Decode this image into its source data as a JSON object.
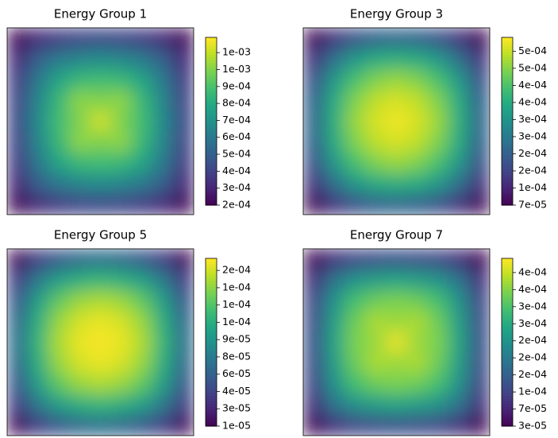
{
  "chart_data": [
    {
      "type": "heatmap",
      "title": "Energy Group 1",
      "cmap": "viridis",
      "clim": [
        0.0002,
        0.00119
      ],
      "cticks": [
        {
          "value": 0.0002,
          "label": "2e-04"
        },
        {
          "value": 0.0003,
          "label": "3e-04"
        },
        {
          "value": 0.0004,
          "label": "4e-04"
        },
        {
          "value": 0.0005,
          "label": "5e-04"
        },
        {
          "value": 0.0006,
          "label": "6e-04"
        },
        {
          "value": 0.0007,
          "label": "7e-04"
        },
        {
          "value": 0.0008,
          "label": "8e-04"
        },
        {
          "value": 0.0009,
          "label": "9e-04"
        },
        {
          "value": 0.001,
          "label": "1e-03"
        },
        {
          "value": 0.0011,
          "label": "1e-03"
        }
      ],
      "z": [
        [
          0.00022,
          0.00032,
          0.00038,
          0.00041,
          0.00042,
          0.00041,
          0.00038,
          0.00032,
          0.00022
        ],
        [
          0.00032,
          0.0005,
          0.0006,
          0.00065,
          0.00067,
          0.00065,
          0.0006,
          0.0005,
          0.00032
        ],
        [
          0.00038,
          0.0006,
          0.00078,
          0.00086,
          0.00088,
          0.00086,
          0.00078,
          0.0006,
          0.00038
        ],
        [
          0.00041,
          0.00065,
          0.00086,
          0.00102,
          0.001,
          0.00102,
          0.00086,
          0.00065,
          0.00041
        ],
        [
          0.00042,
          0.00067,
          0.00088,
          0.001,
          0.00112,
          0.001,
          0.00088,
          0.00067,
          0.00042
        ],
        [
          0.00041,
          0.00065,
          0.00086,
          0.00102,
          0.001,
          0.00102,
          0.00086,
          0.00065,
          0.00041
        ],
        [
          0.00038,
          0.0006,
          0.00078,
          0.00086,
          0.00088,
          0.00086,
          0.00078,
          0.0006,
          0.00038
        ],
        [
          0.00032,
          0.0005,
          0.0006,
          0.00065,
          0.00067,
          0.00065,
          0.0006,
          0.0005,
          0.00032
        ],
        [
          0.00022,
          0.00032,
          0.00038,
          0.00041,
          0.00042,
          0.00041,
          0.00038,
          0.00032,
          0.00022
        ]
      ]
    },
    {
      "type": "heatmap",
      "title": "Energy Group 3",
      "cmap": "viridis",
      "clim": [
        7e-05,
        0.00058
      ],
      "cticks": [
        {
          "value": 7e-05,
          "label": "7e-05"
        },
        {
          "value": 0.000122,
          "label": "1e-04"
        },
        {
          "value": 0.000174,
          "label": "2e-04"
        },
        {
          "value": 0.000226,
          "label": "2e-04"
        },
        {
          "value": 0.000278,
          "label": "3e-04"
        },
        {
          "value": 0.00033,
          "label": "3e-04"
        },
        {
          "value": 0.000382,
          "label": "4e-04"
        },
        {
          "value": 0.000434,
          "label": "4e-04"
        },
        {
          "value": 0.000486,
          "label": "5e-04"
        },
        {
          "value": 0.000538,
          "label": "5e-04"
        }
      ],
      "z": [
        [
          8e-05,
          0.00015,
          0.0002,
          0.00023,
          0.00024,
          0.00023,
          0.0002,
          0.00015,
          8e-05
        ],
        [
          0.00015,
          0.00026,
          0.00034,
          0.00038,
          0.00039,
          0.00038,
          0.00034,
          0.00026,
          0.00015
        ],
        [
          0.0002,
          0.00034,
          0.00043,
          0.00048,
          0.0005,
          0.00048,
          0.00043,
          0.00034,
          0.0002
        ],
        [
          0.00023,
          0.00038,
          0.00048,
          0.00053,
          0.00055,
          0.00053,
          0.00048,
          0.00038,
          0.00023
        ],
        [
          0.00024,
          0.00039,
          0.0005,
          0.00055,
          0.00057,
          0.00055,
          0.0005,
          0.00039,
          0.00024
        ],
        [
          0.00023,
          0.00038,
          0.00048,
          0.00053,
          0.00055,
          0.00053,
          0.00048,
          0.00038,
          0.00023
        ],
        [
          0.0002,
          0.00034,
          0.00043,
          0.00048,
          0.0005,
          0.00048,
          0.00043,
          0.00034,
          0.0002
        ],
        [
          0.00015,
          0.00026,
          0.00034,
          0.00038,
          0.00039,
          0.00038,
          0.00034,
          0.00026,
          0.00015
        ],
        [
          8e-05,
          0.00015,
          0.0002,
          0.00023,
          0.00024,
          0.00023,
          0.0002,
          0.00015,
          8e-05
        ]
      ]
    },
    {
      "type": "heatmap",
      "title": "Energy Group 5",
      "cmap": "viridis",
      "clim": [
        1e-05,
        0.00017
      ],
      "cticks": [
        {
          "value": 1e-05,
          "label": "1e-05"
        },
        {
          "value": 2.65e-05,
          "label": "3e-05"
        },
        {
          "value": 4.3e-05,
          "label": "4e-05"
        },
        {
          "value": 5.95e-05,
          "label": "6e-05"
        },
        {
          "value": 7.6e-05,
          "label": "8e-05"
        },
        {
          "value": 9.25e-05,
          "label": "9e-05"
        },
        {
          "value": 0.000109,
          "label": "1e-04"
        },
        {
          "value": 0.0001255,
          "label": "1e-04"
        },
        {
          "value": 0.000142,
          "label": "1e-04"
        },
        {
          "value": 0.0001585,
          "label": "2e-04"
        }
      ],
      "z": [
        [
          1.5e-05,
          4e-05,
          5.5e-05,
          6.5e-05,
          7e-05,
          6.5e-05,
          5.5e-05,
          4e-05,
          1.5e-05
        ],
        [
          4e-05,
          7.5e-05,
          0.0001,
          0.00011,
          0.000115,
          0.00011,
          0.0001,
          7.5e-05,
          4e-05
        ],
        [
          5.5e-05,
          0.0001,
          0.00013,
          0.000145,
          0.00015,
          0.000145,
          0.00013,
          0.0001,
          5.5e-05
        ],
        [
          6.5e-05,
          0.00011,
          0.000145,
          0.00016,
          0.000165,
          0.00016,
          0.000145,
          0.00011,
          6.5e-05
        ],
        [
          7e-05,
          0.000115,
          0.00015,
          0.000165,
          0.000168,
          0.000165,
          0.00015,
          0.000115,
          7e-05
        ],
        [
          6.5e-05,
          0.00011,
          0.000145,
          0.00016,
          0.000165,
          0.00016,
          0.000145,
          0.00011,
          6.5e-05
        ],
        [
          5.5e-05,
          0.0001,
          0.00013,
          0.000145,
          0.00015,
          0.000145,
          0.00013,
          0.0001,
          5.5e-05
        ],
        [
          4e-05,
          7.5e-05,
          0.0001,
          0.00011,
          0.000115,
          0.00011,
          0.0001,
          7.5e-05,
          4e-05
        ],
        [
          1.5e-05,
          4e-05,
          5.5e-05,
          6.5e-05,
          7e-05,
          6.5e-05,
          5.5e-05,
          4e-05,
          1.5e-05
        ]
      ]
    },
    {
      "type": "heatmap",
      "title": "Energy Group 7",
      "cmap": "viridis",
      "clim": [
        3e-05,
        0.000443
      ],
      "cticks": [
        {
          "value": 3e-05,
          "label": "3e-05"
        },
        {
          "value": 7.2e-05,
          "label": "7e-05"
        },
        {
          "value": 0.000114,
          "label": "1e-04"
        },
        {
          "value": 0.000156,
          "label": "2e-04"
        },
        {
          "value": 0.000198,
          "label": "2e-04"
        },
        {
          "value": 0.00024,
          "label": "2e-04"
        },
        {
          "value": 0.000282,
          "label": "3e-04"
        },
        {
          "value": 0.000324,
          "label": "3e-04"
        },
        {
          "value": 0.000366,
          "label": "4e-04"
        },
        {
          "value": 0.000408,
          "label": "4e-04"
        }
      ],
      "z": [
        [
          4e-05,
          9e-05,
          0.00012,
          0.00013,
          0.000135,
          0.00013,
          0.00012,
          9e-05,
          4e-05
        ],
        [
          9e-05,
          0.00019,
          0.00024,
          0.00026,
          0.00027,
          0.00026,
          0.00024,
          0.00019,
          9e-05
        ],
        [
          0.00012,
          0.00024,
          0.00032,
          0.00035,
          0.00036,
          0.00035,
          0.00032,
          0.00024,
          0.00012
        ],
        [
          0.00013,
          0.00026,
          0.00035,
          0.00039,
          0.00038,
          0.00039,
          0.00035,
          0.00026,
          0.00013
        ],
        [
          0.000135,
          0.00027,
          0.00036,
          0.00038,
          0.00043,
          0.00038,
          0.00036,
          0.00027,
          0.000135
        ],
        [
          0.00013,
          0.00026,
          0.00035,
          0.00039,
          0.00038,
          0.00039,
          0.00035,
          0.00026,
          0.00013
        ],
        [
          0.00012,
          0.00024,
          0.00032,
          0.00035,
          0.00036,
          0.00035,
          0.00032,
          0.00024,
          0.00012
        ],
        [
          9e-05,
          0.00019,
          0.00024,
          0.00026,
          0.00027,
          0.00026,
          0.00024,
          0.00019,
          9e-05
        ],
        [
          4e-05,
          9e-05,
          0.00012,
          0.00013,
          0.000135,
          0.00013,
          0.00012,
          9e-05,
          4e-05
        ]
      ]
    }
  ]
}
